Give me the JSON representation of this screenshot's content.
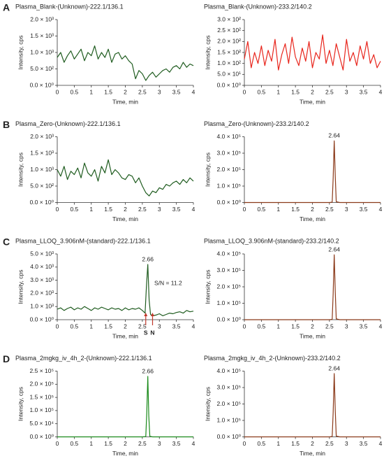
{
  "chart_data": [
    {
      "type": "line",
      "panel": "A",
      "title": "Plasma_Blank-(Unknown)-222.1/136.1",
      "xlabel": "Time, min",
      "ylabel": "Intensity, cps",
      "color": "#1f5c1f",
      "x": [
        0,
        0.1,
        0.2,
        0.3,
        0.4,
        0.5,
        0.6,
        0.7,
        0.8,
        0.9,
        1,
        1.1,
        1.2,
        1.3,
        1.4,
        1.5,
        1.6,
        1.7,
        1.8,
        1.9,
        2,
        2.1,
        2.2,
        2.3,
        2.4,
        2.5,
        2.6,
        2.7,
        2.8,
        2.9,
        3,
        3.1,
        3.2,
        3.3,
        3.4,
        3.5,
        3.6,
        3.7,
        3.8,
        3.9,
        4
      ],
      "values": [
        850,
        1000,
        700,
        900,
        1050,
        800,
        950,
        1100,
        750,
        1000,
        900,
        1200,
        800,
        1000,
        850,
        1100,
        700,
        950,
        1000,
        800,
        900,
        750,
        650,
        200,
        450,
        350,
        150,
        300,
        400,
        250,
        350,
        450,
        500,
        400,
        550,
        600,
        500,
        700,
        550,
        650,
        600
      ],
      "xlim": [
        0,
        4
      ],
      "xticks": [
        0,
        0.5,
        1,
        1.5,
        2,
        2.5,
        3,
        3.5,
        4
      ],
      "ylim": [
        0,
        2000
      ],
      "yticks": [
        {
          "value": 0,
          "label": "0.0 × 10⁰"
        },
        {
          "value": 500,
          "label": "5.0 × 10²"
        },
        {
          "value": 1000,
          "label": "1.0 × 10³"
        },
        {
          "value": 1500,
          "label": "1.5 × 10³"
        },
        {
          "value": 2000,
          "label": "2.0 × 10³"
        }
      ]
    },
    {
      "type": "line",
      "title": "Plasma_Blank-(Unknown)-233.2/140.2",
      "xlabel": "Time, min",
      "ylabel": "Intensity, cps",
      "color": "#e8251c",
      "x": [
        0,
        0.1,
        0.2,
        0.3,
        0.4,
        0.5,
        0.6,
        0.7,
        0.8,
        0.9,
        1,
        1.1,
        1.2,
        1.3,
        1.4,
        1.5,
        1.6,
        1.7,
        1.8,
        1.9,
        2,
        2.1,
        2.2,
        2.3,
        2.4,
        2.5,
        2.6,
        2.7,
        2.8,
        2.9,
        3,
        3.1,
        3.2,
        3.3,
        3.4,
        3.5,
        3.6,
        3.7,
        3.8,
        3.9,
        4
      ],
      "values": [
        120,
        200,
        80,
        150,
        100,
        180,
        90,
        160,
        110,
        210,
        70,
        140,
        190,
        100,
        220,
        130,
        90,
        170,
        110,
        200,
        80,
        150,
        120,
        230,
        100,
        160,
        90,
        190,
        130,
        70,
        210,
        110,
        150,
        90,
        180,
        120,
        200,
        100,
        140,
        80,
        110
      ],
      "xlim": [
        0,
        4
      ],
      "xticks": [
        0,
        0.5,
        1,
        1.5,
        2,
        2.5,
        3,
        3.5,
        4
      ],
      "ylim": [
        0,
        300
      ],
      "yticks": [
        {
          "value": 0,
          "label": "0.0 × 10⁰"
        },
        {
          "value": 50,
          "label": "5.0 × 10¹"
        },
        {
          "value": 100,
          "label": "1.0 × 10²"
        },
        {
          "value": 150,
          "label": "1.5 × 10²"
        },
        {
          "value": 200,
          "label": "2.0 × 10²"
        },
        {
          "value": 250,
          "label": "2.5 × 10²"
        },
        {
          "value": 300,
          "label": "3.0 × 10²"
        }
      ]
    },
    {
      "type": "line",
      "panel": "B",
      "title": "Plasma_Zero-(Unknown)-222.1/136.1",
      "xlabel": "Time, min",
      "ylabel": "Intensity, cps",
      "color": "#1f5c1f",
      "x": [
        0,
        0.1,
        0.2,
        0.3,
        0.4,
        0.5,
        0.6,
        0.7,
        0.8,
        0.9,
        1,
        1.1,
        1.2,
        1.3,
        1.4,
        1.5,
        1.6,
        1.7,
        1.8,
        1.9,
        2,
        2.1,
        2.2,
        2.3,
        2.4,
        2.5,
        2.6,
        2.7,
        2.8,
        2.9,
        3,
        3.1,
        3.2,
        3.3,
        3.4,
        3.5,
        3.6,
        3.7,
        3.8,
        3.9,
        4
      ],
      "values": [
        1000,
        800,
        1100,
        700,
        950,
        850,
        1050,
        750,
        1200,
        900,
        800,
        1000,
        650,
        1100,
        900,
        1300,
        850,
        1000,
        900,
        750,
        700,
        850,
        800,
        600,
        750,
        500,
        300,
        200,
        350,
        300,
        450,
        400,
        550,
        500,
        600,
        650,
        550,
        700,
        600,
        750,
        650
      ],
      "xlim": [
        0,
        4
      ],
      "xticks": [
        0,
        0.5,
        1,
        1.5,
        2,
        2.5,
        3,
        3.5,
        4
      ],
      "ylim": [
        0,
        2000
      ],
      "yticks": [
        {
          "value": 0,
          "label": "0.0 × 10⁰"
        },
        {
          "value": 500,
          "label": "5.0 × 10²"
        },
        {
          "value": 1000,
          "label": "1.0 × 10³"
        },
        {
          "value": 1500,
          "label": "1.5 × 10³"
        },
        {
          "value": 2000,
          "label": "2.0 × 10³"
        }
      ]
    },
    {
      "type": "line",
      "title": "Plasma_Zero-(Unknown)-233.2/140.2",
      "xlabel": "Time, min",
      "ylabel": "Intensity, cps",
      "color": "#8b3a1a",
      "peak_label": "2.64",
      "x": [
        0,
        0.5,
        1,
        1.5,
        2,
        2.5,
        2.58,
        2.61,
        2.64,
        2.67,
        2.7,
        2.8,
        3,
        3.5,
        4
      ],
      "values": [
        0,
        0,
        0,
        0,
        0,
        0,
        2000,
        150000,
        375000,
        160000,
        5000,
        0,
        0,
        0,
        0
      ],
      "xlim": [
        0,
        4
      ],
      "xticks": [
        0,
        0.5,
        1,
        1.5,
        2,
        2.5,
        3,
        3.5,
        4
      ],
      "ylim": [
        0,
        400000
      ],
      "yticks": [
        {
          "value": 0,
          "label": "0.0 × 10⁰"
        },
        {
          "value": 100000,
          "label": "1.0 × 10⁵"
        },
        {
          "value": 200000,
          "label": "2.0 × 10⁵"
        },
        {
          "value": 300000,
          "label": "3.0 × 10⁵"
        },
        {
          "value": 400000,
          "label": "4.0 × 10⁵"
        }
      ]
    },
    {
      "type": "line",
      "panel": "C",
      "title": "Plasma_LLOQ_3.906nM-(standard)-222.1/136.1",
      "xlabel": "Time, min",
      "ylabel": "Intensity, cps",
      "color": "#1f5c1f",
      "peak_label": "2.66",
      "sn_label": "S/N = 11.2",
      "markers": [
        {
          "label": "S",
          "x": 2.6
        },
        {
          "label": "N",
          "x": 2.8
        }
      ],
      "x": [
        0,
        0.1,
        0.2,
        0.3,
        0.4,
        0.5,
        0.6,
        0.7,
        0.8,
        0.9,
        1,
        1.1,
        1.2,
        1.3,
        1.4,
        1.5,
        1.6,
        1.7,
        1.8,
        1.9,
        2,
        2.1,
        2.2,
        2.3,
        2.4,
        2.5,
        2.58,
        2.62,
        2.66,
        2.7,
        2.74,
        2.8,
        2.9,
        3,
        3.1,
        3.2,
        3.3,
        3.4,
        3.5,
        3.6,
        3.7,
        3.8,
        3.9,
        4
      ],
      "values": [
        800,
        900,
        700,
        850,
        950,
        750,
        900,
        800,
        1000,
        850,
        700,
        900,
        800,
        950,
        850,
        750,
        900,
        800,
        850,
        700,
        900,
        750,
        850,
        800,
        900,
        700,
        500,
        2500,
        4200,
        1500,
        400,
        300,
        350,
        450,
        300,
        400,
        500,
        450,
        550,
        600,
        500,
        700,
        600,
        650
      ],
      "xlim": [
        0,
        4
      ],
      "xticks": [
        0,
        0.5,
        1,
        1.5,
        2,
        2.5,
        3,
        3.5,
        4
      ],
      "ylim": [
        0,
        5000
      ],
      "yticks": [
        {
          "value": 0,
          "label": "0.0 × 10⁰"
        },
        {
          "value": 1000,
          "label": "1.0 × 10³"
        },
        {
          "value": 2000,
          "label": "2.0 × 10³"
        },
        {
          "value": 3000,
          "label": "3.0 × 10³"
        },
        {
          "value": 4000,
          "label": "4.0 × 10³"
        },
        {
          "value": 5000,
          "label": "5.0 × 10³"
        }
      ]
    },
    {
      "type": "line",
      "title": "Plasma_LLOQ_3.906nM-(standard)-233.2/140.2",
      "xlabel": "Time, min",
      "ylabel": "Intensity, cps",
      "color": "#8b3a1a",
      "peak_label": "2.64",
      "x": [
        0,
        0.5,
        1,
        1.5,
        2,
        2.5,
        2.58,
        2.61,
        2.64,
        2.67,
        2.7,
        2.8,
        3,
        3.5,
        4
      ],
      "values": [
        0,
        0,
        0,
        0,
        0,
        0,
        2000,
        160000,
        395000,
        170000,
        5000,
        0,
        0,
        0,
        0
      ],
      "xlim": [
        0,
        4
      ],
      "xticks": [
        0,
        0.5,
        1,
        1.5,
        2,
        2.5,
        3,
        3.5,
        4
      ],
      "ylim": [
        0,
        400000
      ],
      "yticks": [
        {
          "value": 0,
          "label": "0.0 × 10⁰"
        },
        {
          "value": 100000,
          "label": "1.0 × 10⁵"
        },
        {
          "value": 200000,
          "label": "2.0 × 10⁵"
        },
        {
          "value": 300000,
          "label": "3.0 × 10⁵"
        },
        {
          "value": 400000,
          "label": "4.0 × 10⁵"
        }
      ]
    },
    {
      "type": "line",
      "panel": "D",
      "title": "Plasma_2mgkg_iv_4h_2-(Unknown)-222.1/136.1",
      "xlabel": "Time, min",
      "ylabel": "Intensity, cps",
      "color": "#1a8a1a",
      "peak_label": "2.66",
      "x": [
        0,
        0.5,
        1,
        1.5,
        2,
        2.5,
        2.6,
        2.63,
        2.66,
        2.69,
        2.72,
        2.8,
        3,
        3.5,
        4
      ],
      "values": [
        0,
        0,
        0,
        0,
        0,
        0,
        1000,
        90000,
        230000,
        80000,
        2000,
        0,
        0,
        0,
        0
      ],
      "xlim": [
        0,
        4
      ],
      "xticks": [
        0,
        0.5,
        1,
        1.5,
        2,
        2.5,
        3,
        3.5,
        4
      ],
      "ylim": [
        0,
        250000
      ],
      "yticks": [
        {
          "value": 0,
          "label": "0.0 × 10⁰"
        },
        {
          "value": 50000,
          "label": "5.0 × 10⁴"
        },
        {
          "value": 100000,
          "label": "1.0 × 10⁵"
        },
        {
          "value": 150000,
          "label": "1.5 × 10⁵"
        },
        {
          "value": 200000,
          "label": "2.0 × 10⁵"
        },
        {
          "value": 250000,
          "label": "2.5 × 10⁵"
        }
      ]
    },
    {
      "type": "line",
      "title": "Plasma_2mgkg_iv_4h_2-(Unknown)-233.2/140.2",
      "xlabel": "Time, min",
      "ylabel": "Intensity, cps",
      "color": "#8b3a1a",
      "peak_label": "2.64",
      "x": [
        0,
        0.5,
        1,
        1.5,
        2,
        2.5,
        2.58,
        2.61,
        2.64,
        2.67,
        2.7,
        2.8,
        3,
        3.5,
        4
      ],
      "values": [
        0,
        0,
        0,
        0,
        0,
        0,
        2000,
        150000,
        385000,
        160000,
        5000,
        0,
        0,
        0,
        0
      ],
      "xlim": [
        0,
        4
      ],
      "xticks": [
        0,
        0.5,
        1,
        1.5,
        2,
        2.5,
        3,
        3.5,
        4
      ],
      "ylim": [
        0,
        400000
      ],
      "yticks": [
        {
          "value": 0,
          "label": "0.0 × 10⁰"
        },
        {
          "value": 100000,
          "label": "1.0 × 10⁵"
        },
        {
          "value": 200000,
          "label": "2.0 × 10⁵"
        },
        {
          "value": 300000,
          "label": "3.0 × 10⁵"
        },
        {
          "value": 400000,
          "label": "4.0 × 10⁵"
        }
      ]
    }
  ]
}
